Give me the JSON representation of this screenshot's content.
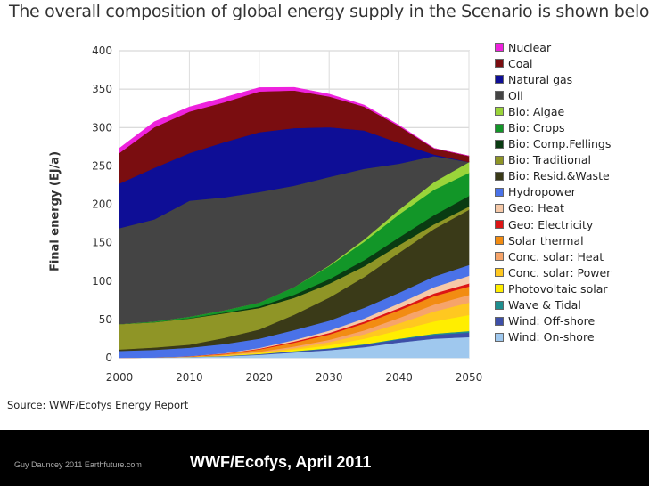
{
  "slide": {
    "title": "The overall composition of global energy supply in the Scenario is shown below.",
    "source": "Source:  WWF/Ecofys Energy Report",
    "footer_credit": "Guy Dauncey 2011 Earthfuture.com",
    "footer_caption": "WWF/Ecofys, April 2011"
  },
  "colors": {
    "footer_bg": "#000000",
    "plot_bg": "#ffffff",
    "text": "#333333"
  },
  "chart_data": {
    "type": "area",
    "stacked": true,
    "title": "",
    "xlabel": "",
    "ylabel": "Final energy (EJ/a)",
    "x": [
      2000,
      2005,
      2010,
      2015,
      2020,
      2025,
      2030,
      2035,
      2040,
      2045,
      2050
    ],
    "xticks": [
      "2000",
      "2010",
      "2020",
      "2030",
      "2040",
      "2050"
    ],
    "yticks": [
      "0",
      "50",
      "100",
      "150",
      "200",
      "250",
      "300",
      "350",
      "400"
    ],
    "ylim": [
      0,
      400
    ],
    "grid": true,
    "legend_position": "right",
    "series": [
      {
        "name": "Wind: On-shore",
        "color": "#9fc8ee",
        "values": [
          0,
          0.5,
          1,
          2,
          4,
          7,
          10,
          14,
          20,
          25,
          27
        ]
      },
      {
        "name": "Wind: Off-shore",
        "color": "#3d4fa8",
        "values": [
          0,
          0,
          0.2,
          0.5,
          1,
          1.5,
          2,
          3,
          4,
          5,
          6
        ]
      },
      {
        "name": "Wave & Tidal",
        "color": "#1f8f8f",
        "values": [
          0,
          0,
          0,
          0,
          0,
          0.3,
          0.5,
          0.8,
          1,
          1.5,
          2
        ]
      },
      {
        "name": "Photovoltaic solar",
        "color": "#ffee00",
        "values": [
          0,
          0,
          0.2,
          0.5,
          1,
          2,
          4,
          7,
          11,
          16,
          21
        ]
      },
      {
        "name": "Conc. solar: Power",
        "color": "#ffc820",
        "values": [
          0,
          0,
          0,
          0.5,
          1,
          2,
          4,
          6,
          9,
          13,
          16
        ]
      },
      {
        "name": "Conc. solar: Heat",
        "color": "#f6a46a",
        "values": [
          0,
          0,
          0,
          0.5,
          1,
          2,
          3,
          5,
          7,
          9,
          10
        ]
      },
      {
        "name": "Solar thermal",
        "color": "#f28c12",
        "values": [
          0,
          0,
          0.5,
          1,
          3,
          5,
          7,
          9,
          10,
          11,
          11
        ]
      },
      {
        "name": "Geo: Electricity",
        "color": "#dd1515",
        "values": [
          0,
          0,
          0.3,
          0.5,
          1,
          1.5,
          2,
          2.5,
          3,
          3.5,
          4
        ]
      },
      {
        "name": "Geo: Heat",
        "color": "#f6c9a8",
        "values": [
          0,
          0,
          0,
          0.5,
          1,
          2,
          3,
          4,
          6,
          8,
          10
        ]
      },
      {
        "name": "Hydropower",
        "color": "#4a72e8",
        "values": [
          9,
          10,
          11,
          12,
          12,
          13,
          13,
          14,
          14,
          14,
          14
        ]
      },
      {
        "name": "Bio: Resid.&Waste",
        "color": "#3a3a18",
        "values": [
          2,
          3,
          4,
          8,
          12,
          20,
          30,
          40,
          52,
          62,
          72
        ]
      },
      {
        "name": "Bio: Traditional",
        "color": "#8f9526",
        "values": [
          33,
          33,
          34,
          32,
          28,
          22,
          18,
          14,
          10,
          6,
          4
        ]
      },
      {
        "name": "Bio: Comp.Fellings",
        "color": "#0a3b12",
        "values": [
          0,
          0,
          0.5,
          1,
          2,
          4,
          6,
          8,
          10,
          12,
          14
        ]
      },
      {
        "name": "Bio: Crops",
        "color": "#129628",
        "values": [
          0,
          1,
          2,
          3,
          5,
          10,
          17,
          24,
          30,
          33,
          30
        ]
      },
      {
        "name": "Bio: Algae",
        "color": "#9ad43a",
        "values": [
          0,
          0,
          0,
          0,
          0,
          0,
          1,
          3,
          6,
          10,
          14
        ]
      },
      {
        "name": "Oil",
        "color": "#444444",
        "values": [
          125,
          133,
          151,
          147,
          144,
          132,
          115,
          92,
          60,
          34,
          0
        ]
      },
      {
        "name": "Natural gas",
        "color": "#0e0e96",
        "values": [
          58,
          67,
          62,
          72,
          78,
          75,
          65,
          50,
          27,
          2,
          0
        ]
      },
      {
        "name": "Coal",
        "color": "#7a0d10",
        "values": [
          40,
          53,
          54,
          52,
          53,
          49,
          40,
          31,
          22,
          8,
          8
        ]
      },
      {
        "name": "Nuclear",
        "color": "#ee22dd",
        "values": [
          6,
          7,
          6,
          6,
          5,
          4,
          3,
          2,
          1,
          0,
          0
        ]
      }
    ],
    "legend_order": [
      "Nuclear",
      "Coal",
      "Natural gas",
      "Oil",
      "Bio: Algae",
      "Bio: Crops",
      "Bio: Comp.Fellings",
      "Bio: Traditional",
      "Bio: Resid.&Waste",
      "Hydropower",
      "Geo: Heat",
      "Geo: Electricity",
      "Solar thermal",
      "Conc. solar: Heat",
      "Conc. solar: Power",
      "Photovoltaic solar",
      "Wave & Tidal",
      "Wind: Off-shore",
      "Wind: On-shore"
    ]
  }
}
